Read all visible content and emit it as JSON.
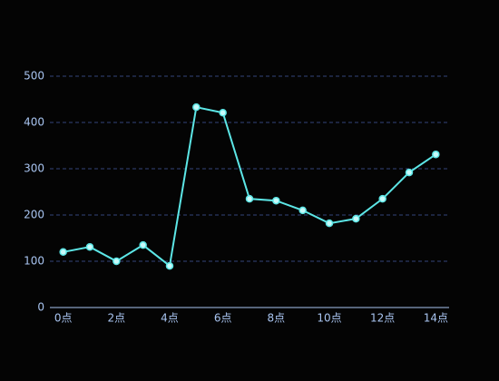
{
  "chart_data": {
    "type": "line",
    "categories": [
      "0点",
      null,
      "2点",
      null,
      "4点",
      null,
      "6点",
      null,
      "8点",
      null,
      "10点",
      null,
      "12点",
      null,
      "14点"
    ],
    "values": [
      120,
      131,
      100,
      135,
      90,
      433,
      421,
      235,
      231,
      210,
      182,
      192,
      235,
      292,
      331
    ],
    "color": "#5ce6e6",
    "ylim": [
      0,
      500
    ],
    "yticks": [
      0,
      100,
      200,
      300,
      400,
      500
    ],
    "grid": true
  }
}
